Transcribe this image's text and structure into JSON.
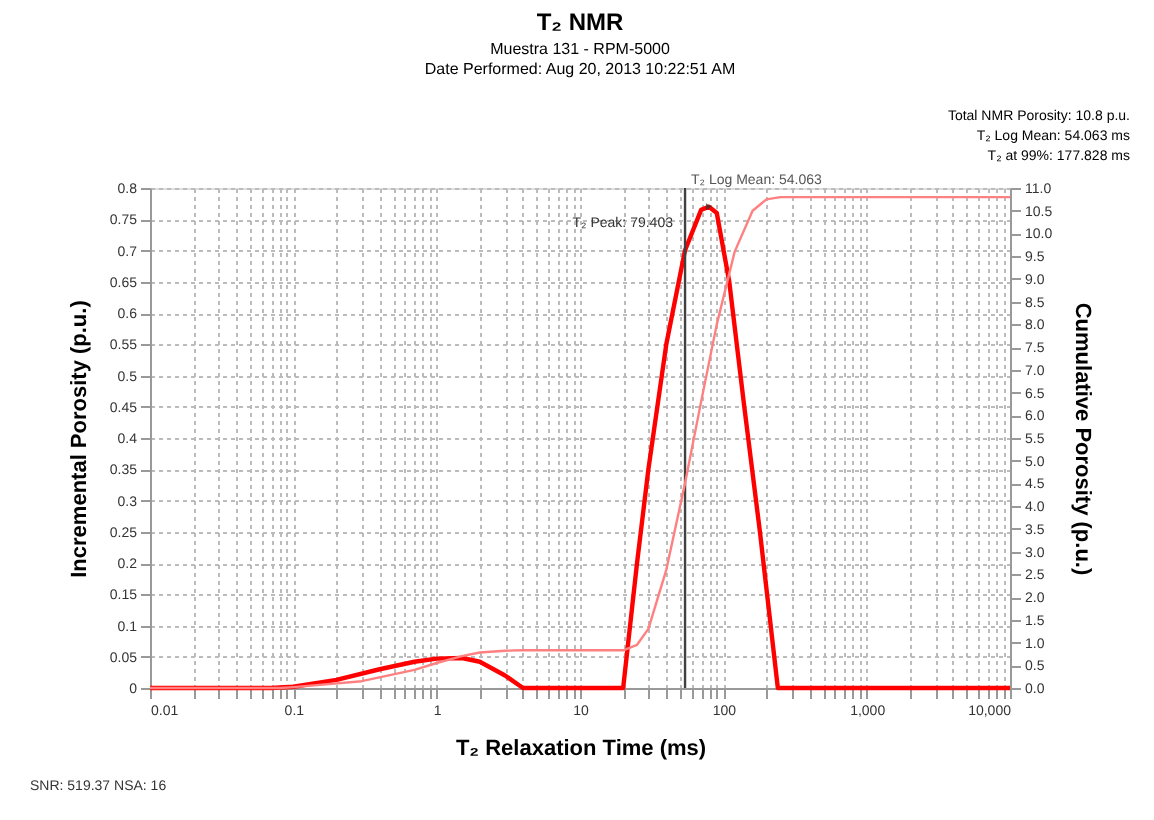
{
  "chart_data": {
    "type": "line",
    "title": "T₂ NMR",
    "subtitle": "Muestra 131 - RPM-5000",
    "xlabel": "T₂ Relaxation Time (ms)",
    "ylabel": "Incremental Porosity (p.u.)",
    "y2label": "Cumulative Porosity (p.u.)",
    "log": "x",
    "grid": true,
    "marker": "none",
    "line_style": "solid",
    "xlim": [
      0.01,
      10000
    ],
    "xticks": [
      0.01,
      {
        "value": 0.02,
        "label": null
      },
      {
        "value": 0.03,
        "label": null
      },
      {
        "value": 0.04,
        "label": null
      },
      {
        "value": 0.05,
        "label": null
      },
      {
        "value": 0.06,
        "label": null
      },
      {
        "value": 0.07,
        "label": null
      },
      {
        "value": 0.08,
        "label": null
      },
      {
        "value": 0.09,
        "label": null
      },
      0.1,
      {
        "value": 0.2,
        "label": null
      },
      {
        "value": 0.3,
        "label": null
      },
      {
        "value": 0.4,
        "label": null
      },
      {
        "value": 0.5,
        "label": null
      },
      {
        "value": 0.6,
        "label": null
      },
      {
        "value": 0.7,
        "label": null
      },
      {
        "value": 0.8,
        "label": null
      },
      {
        "value": 0.9,
        "label": null
      },
      1,
      {
        "value": 2,
        "label": null
      },
      {
        "value": 3,
        "label": null
      },
      {
        "value": 4,
        "label": null
      },
      {
        "value": 5,
        "label": null
      },
      {
        "value": 6,
        "label": null
      },
      {
        "value": 7,
        "label": null
      },
      {
        "value": 8,
        "label": null
      },
      {
        "value": 9,
        "label": null
      },
      10,
      {
        "value": 20,
        "label": null
      },
      {
        "value": 30,
        "label": null
      },
      {
        "value": 40,
        "label": null
      },
      {
        "value": 50,
        "label": null
      },
      {
        "value": 60,
        "label": null
      },
      {
        "value": 70,
        "label": null
      },
      {
        "value": 80,
        "label": null
      },
      {
        "value": 90,
        "label": null
      },
      100,
      {
        "value": 200,
        "label": null
      },
      {
        "value": 300,
        "label": null
      },
      {
        "value": 400,
        "label": null
      },
      {
        "value": 500,
        "label": null
      },
      {
        "value": 600,
        "label": null
      },
      {
        "value": 700,
        "label": null
      },
      {
        "value": 800,
        "label": null
      },
      {
        "value": 900,
        "label": null
      },
      {
        "value": 1000,
        "label": "1,000"
      },
      {
        "value": 2000,
        "label": null
      },
      {
        "value": 3000,
        "label": null
      },
      {
        "value": 4000,
        "label": null
      },
      {
        "value": 5000,
        "label": null
      },
      {
        "value": 6000,
        "label": null
      },
      {
        "value": 7000,
        "label": null
      },
      {
        "value": 8000,
        "label": null
      },
      {
        "value": 9000,
        "label": null
      },
      {
        "value": 10000,
        "label": "10,000"
      }
    ],
    "ylim": [
      0,
      0.8
    ],
    "yticks": [
      0,
      0.05,
      0.1,
      0.15,
      0.2,
      0.25,
      0.3,
      0.35,
      0.4,
      0.45,
      0.5,
      0.55,
      0.6,
      0.65,
      0.7,
      0.75,
      0.8
    ],
    "y2lim": [
      0,
      11
    ],
    "y2ticks": [
      {
        "value": 0,
        "label": "0.0"
      },
      0.5,
      {
        "value": 1,
        "label": "1.0"
      },
      1.5,
      {
        "value": 2,
        "label": "2.0"
      },
      2.5,
      {
        "value": 3,
        "label": "3.0"
      },
      3.5,
      {
        "value": 4,
        "label": "4.0"
      },
      4.5,
      {
        "value": 5,
        "label": "5.0"
      },
      5.5,
      {
        "value": 6,
        "label": "6.0"
      },
      6.5,
      {
        "value": 7,
        "label": "7.0"
      },
      7.5,
      {
        "value": 8,
        "label": "8.0"
      },
      8.5,
      {
        "value": 9,
        "label": "9.0"
      },
      9.5,
      {
        "value": 10,
        "label": "10.0"
      },
      10.5,
      {
        "value": 11,
        "label": "11.0"
      }
    ],
    "series": [
      {
        "color": "#ff0000",
        "x": [
          0.01,
          0.07,
          0.1,
          0.2,
          0.4,
          0.7,
          1,
          1.5,
          2,
          3,
          4,
          20,
          25,
          30,
          40,
          54,
          70,
          79.403,
          90,
          110,
          140,
          180,
          240,
          10000
        ],
        "values": [
          0,
          0,
          0.002,
          0.013,
          0.03,
          0.042,
          0.047,
          0.048,
          0.042,
          0.02,
          0,
          0,
          0.2,
          0.35,
          0.55,
          0.7,
          0.765,
          0.77,
          0.76,
          0.65,
          0.45,
          0.25,
          0,
          0
        ]
      },
      {
        "color": "#ff8080",
        "axis": "y2",
        "x": [
          0.01,
          0.08,
          0.1,
          0.3,
          0.7,
          1,
          1.5,
          2,
          3,
          4,
          20,
          25,
          30,
          40,
          54,
          70,
          90,
          120,
          160,
          200,
          250,
          10000
        ],
        "values": [
          0,
          0,
          0.02,
          0.15,
          0.4,
          0.55,
          0.7,
          0.78,
          0.82,
          0.83,
          0.83,
          0.95,
          1.3,
          2.6,
          4.5,
          6.3,
          8.0,
          9.6,
          10.5,
          10.75,
          10.8,
          10.8
        ]
      }
    ],
    "ref_lines": [
      {
        "axis": "x",
        "value": 54.063,
        "label": "T₂ Log Mean: 54.063",
        "color": "#404040"
      }
    ],
    "annotations": [
      "Date Performed: Aug 20, 2013 10:22:51 AM",
      "Total NMR Porosity: 10.8 p.u.",
      "T₂ Log Mean: 54.063 ms",
      "T₂ at 99%: 177.828 ms",
      {
        "text": "T₂ Peak: 79.403",
        "x": 79.403,
        "y": 0.77
      },
      "SNR: 519.37 NSA: 16"
    ]
  }
}
